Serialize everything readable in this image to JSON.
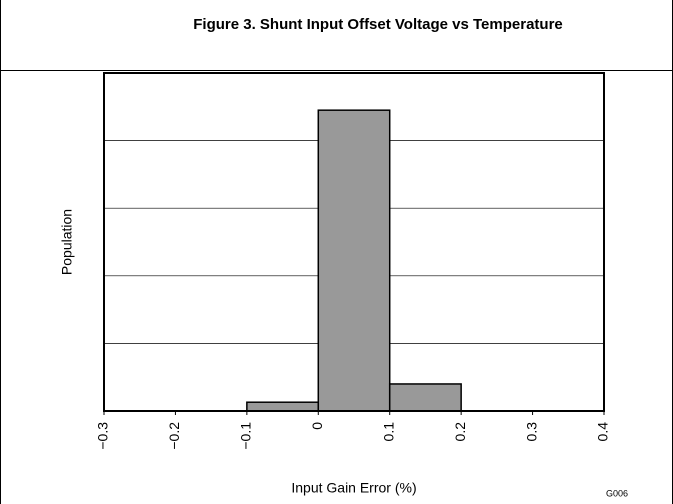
{
  "chart_data": {
    "type": "histogram",
    "title": "Figure 3. Shunt Input Offset Voltage vs Temperature",
    "xlabel": "Input Gain Error (%)",
    "ylabel": "Population",
    "note": "G006",
    "bins": [
      -0.3,
      -0.2,
      -0.1,
      0,
      0.1,
      0.2,
      0.3,
      0.4
    ],
    "values": [
      0,
      0,
      0.13,
      4.45,
      0.4,
      0,
      0
    ],
    "color": "#999999",
    "xlim": [
      -0.3,
      0.4
    ],
    "xticks": [
      {
        "value": -0.3,
        "label": "−0.3"
      },
      {
        "value": -0.2,
        "label": "−0.2"
      },
      {
        "value": -0.1,
        "label": "−0.1"
      },
      0,
      0.1,
      0.2,
      0.3,
      0.4
    ],
    "ylim": [
      0,
      5
    ],
    "yticks": [
      0,
      1,
      2,
      3,
      4,
      5
    ],
    "grid": true
  }
}
